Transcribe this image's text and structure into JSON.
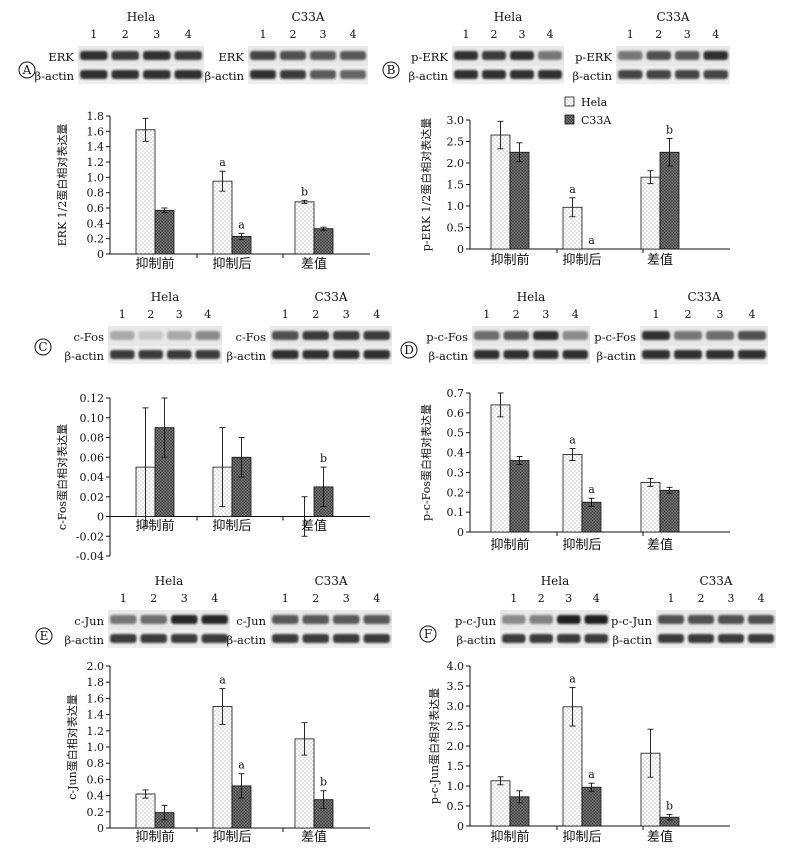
{
  "colors": {
    "hela_fill": "#ffffff",
    "c33a_fill": "#6b6b6b",
    "axis": "#111111",
    "band": "#1e1e1e"
  },
  "chart_data": [
    {
      "panel": "A",
      "type": "bar",
      "blots": {
        "left_group": "Hela",
        "right_group": "C33A",
        "lanes": [
          "1",
          "2",
          "3",
          "4"
        ],
        "target": "ERK",
        "control": "β-actin"
      },
      "ylabel": "ERK 1/2蛋白相对表达量",
      "categories": [
        "抑制前",
        "抑制后",
        "差值"
      ],
      "ylim": [
        0,
        1.8
      ],
      "yticks": [
        "0",
        "0.2",
        "0.4",
        "0.6",
        "0.8",
        "1.0",
        "1.2",
        "1.4",
        "1.6",
        "1.8"
      ],
      "series": [
        {
          "name": "Hela",
          "values": [
            1.62,
            0.95,
            0.68
          ],
          "errors": [
            0.15,
            0.13,
            0.02
          ],
          "sig": [
            "",
            "a",
            "b"
          ]
        },
        {
          "name": "C33A",
          "values": [
            0.57,
            0.23,
            0.33
          ],
          "errors": [
            0.03,
            0.04,
            0.02
          ],
          "sig": [
            "",
            "a",
            ""
          ]
        }
      ],
      "legend": []
    },
    {
      "panel": "B",
      "type": "bar",
      "blots": {
        "left_group": "Hela",
        "right_group": "C33A",
        "lanes": [
          "1",
          "2",
          "3",
          "4"
        ],
        "target": "p-ERK",
        "control": "β-actin"
      },
      "ylabel": "p-ERK 1/2蛋白相对表达量",
      "categories": [
        "抑制前",
        "抑制后",
        "差值"
      ],
      "ylim": [
        0,
        3.0
      ],
      "yticks": [
        "0",
        "0.5",
        "1.0",
        "1.5",
        "2.0",
        "2.5",
        "3.0"
      ],
      "series": [
        {
          "name": "Hela",
          "values": [
            2.65,
            0.97,
            1.67
          ],
          "errors": [
            0.32,
            0.22,
            0.15
          ],
          "sig": [
            "",
            "a",
            ""
          ]
        },
        {
          "name": "C33A",
          "values": [
            2.25,
            0.0,
            2.25
          ],
          "errors": [
            0.22,
            0.0,
            0.32
          ],
          "sig": [
            "",
            "a",
            "b"
          ]
        }
      ],
      "legend": [
        "Hela",
        "C33A"
      ]
    },
    {
      "panel": "C",
      "type": "bar",
      "blots": {
        "left_group": "Hela",
        "right_group": "C33A",
        "lanes": [
          "1",
          "2",
          "3",
          "4"
        ],
        "target": "c-Fos",
        "control": "β-actin"
      },
      "ylabel": "c-Fos蛋白相对表达量",
      "categories": [
        "抑制前",
        "抑制后",
        "差值"
      ],
      "ylim": [
        -0.04,
        0.12
      ],
      "yticks": [
        "-0.04",
        "-0.02",
        "0",
        "0.02",
        "0.04",
        "0.06",
        "0.08",
        "0.10",
        "0.12"
      ],
      "series": [
        {
          "name": "Hela",
          "values": [
            0.05,
            0.05,
            0.0
          ],
          "errors": [
            0.06,
            0.04,
            0.02
          ],
          "sig": [
            "",
            "",
            ""
          ]
        },
        {
          "name": "C33A",
          "values": [
            0.09,
            0.06,
            0.03
          ],
          "errors": [
            0.03,
            0.02,
            0.02
          ],
          "sig": [
            "",
            "",
            "b"
          ]
        }
      ],
      "legend": []
    },
    {
      "panel": "D",
      "type": "bar",
      "blots": {
        "left_group": "Hela",
        "right_group": "C33A",
        "lanes": [
          "1",
          "2",
          "3",
          "4"
        ],
        "target": "p-c-Fos",
        "control": "β-actin"
      },
      "ylabel": "p-c-Fos蛋白相对表达量",
      "categories": [
        "抑制前",
        "抑制后",
        "差值"
      ],
      "ylim": [
        0,
        0.7
      ],
      "yticks": [
        "0",
        "0.1",
        "0.2",
        "0.3",
        "0.4",
        "0.5",
        "0.6",
        "0.7"
      ],
      "series": [
        {
          "name": "Hela",
          "values": [
            0.64,
            0.39,
            0.25
          ],
          "errors": [
            0.06,
            0.03,
            0.02
          ],
          "sig": [
            "",
            "a",
            ""
          ]
        },
        {
          "name": "C33A",
          "values": [
            0.36,
            0.15,
            0.21
          ],
          "errors": [
            0.02,
            0.02,
            0.015
          ],
          "sig": [
            "",
            "a",
            ""
          ]
        }
      ],
      "legend": []
    },
    {
      "panel": "E",
      "type": "bar",
      "blots": {
        "left_group": "Hela",
        "right_group": "C33A",
        "lanes": [
          "1",
          "2",
          "3",
          "4"
        ],
        "target": "c-Jun",
        "control": "β-actin"
      },
      "ylabel": "c-Jun蛋白相对表达量",
      "categories": [
        "抑制前",
        "抑制后",
        "差值"
      ],
      "ylim": [
        0,
        2.0
      ],
      "yticks": [
        "0",
        "0.2",
        "0.4",
        "0.6",
        "0.8",
        "1.0",
        "1.2",
        "1.4",
        "1.6",
        "1.8",
        "2.0"
      ],
      "series": [
        {
          "name": "Hela",
          "values": [
            0.42,
            1.5,
            1.1
          ],
          "errors": [
            0.05,
            0.22,
            0.2
          ],
          "sig": [
            "",
            "a",
            ""
          ]
        },
        {
          "name": "C33A",
          "values": [
            0.19,
            0.52,
            0.35
          ],
          "errors": [
            0.09,
            0.15,
            0.11
          ],
          "sig": [
            "",
            "a",
            "b"
          ]
        }
      ],
      "legend": []
    },
    {
      "panel": "F",
      "type": "bar",
      "blots": {
        "left_group": "Hela",
        "right_group": "C33A",
        "lanes": [
          "1",
          "2",
          "3",
          "4"
        ],
        "target": "p-c-Jun",
        "control": "β-actin"
      },
      "ylabel": "p-c-Jun蛋白相对表达量",
      "categories": [
        "抑制前",
        "抑制后",
        "差值"
      ],
      "ylim": [
        0,
        4.0
      ],
      "yticks": [
        "0",
        "0.5",
        "1.0",
        "1.5",
        "2.0",
        "2.5",
        "3.0",
        "3.5",
        "4.0"
      ],
      "series": [
        {
          "name": "Hela",
          "values": [
            1.13,
            2.98,
            1.82
          ],
          "errors": [
            0.1,
            0.48,
            0.6
          ],
          "sig": [
            "",
            "a",
            ""
          ]
        },
        {
          "name": "C33A",
          "values": [
            0.73,
            0.97,
            0.22
          ],
          "errors": [
            0.15,
            0.1,
            0.07
          ],
          "sig": [
            "",
            "a",
            "b"
          ]
        }
      ],
      "legend": []
    }
  ]
}
